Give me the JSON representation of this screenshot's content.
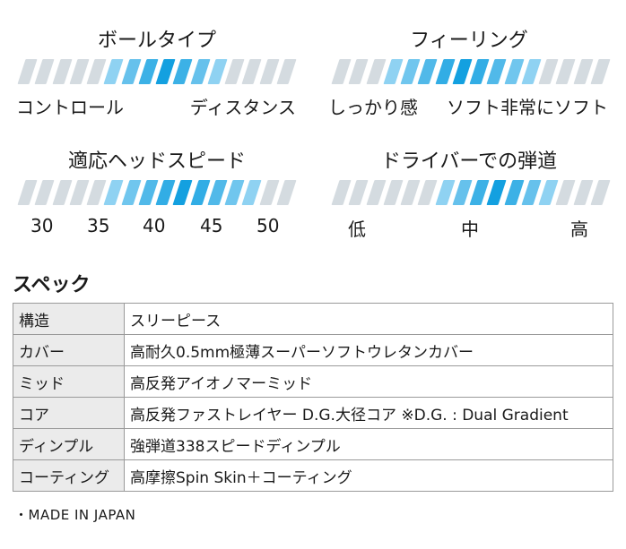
{
  "gauges": [
    {
      "id": "ball-type",
      "title": "ボールタイプ",
      "labels": [
        "コントロール",
        "ディスタンス"
      ],
      "segments": 16,
      "highlight": [
        5,
        11
      ]
    },
    {
      "id": "feeling",
      "title": "フィーリング",
      "labels": [
        "しっかり感",
        "ソフト",
        "非常にソフト"
      ],
      "segments": 16,
      "highlight": [
        3,
        11
      ]
    },
    {
      "id": "head-speed",
      "title": "適応ヘッドスピード",
      "labels": [
        "30",
        "35",
        "40",
        "45",
        "50"
      ],
      "segments": 16,
      "highlight": [
        5,
        13
      ]
    },
    {
      "id": "trajectory",
      "title": "ドライバーでの弾道",
      "labels": [
        "低",
        "中",
        "高"
      ],
      "segments": 16,
      "highlight": [
        6,
        12
      ]
    }
  ],
  "colors": {
    "inactive": "#d4dbe0",
    "active_light": "#8fd2f2",
    "active_dark": "#13a0e0"
  },
  "spec": {
    "heading": "スペック",
    "rows": [
      {
        "key": "構造",
        "value": "スリーピース"
      },
      {
        "key": "カバー",
        "value": "高耐久0.5mm極薄スーパーソフトウレタンカバー"
      },
      {
        "key": "ミッド",
        "value": "高反発アイオノマーミッド"
      },
      {
        "key": "コア",
        "value": "高反発ファストレイヤー D.G.大径コア ※D.G. : Dual Gradient"
      },
      {
        "key": "ディンプル",
        "value": "強弾道338スピードディンプル"
      },
      {
        "key": "コーティング",
        "value": "高摩擦Spin Skin＋コーティング"
      }
    ]
  },
  "footnote": "・MADE IN JAPAN"
}
